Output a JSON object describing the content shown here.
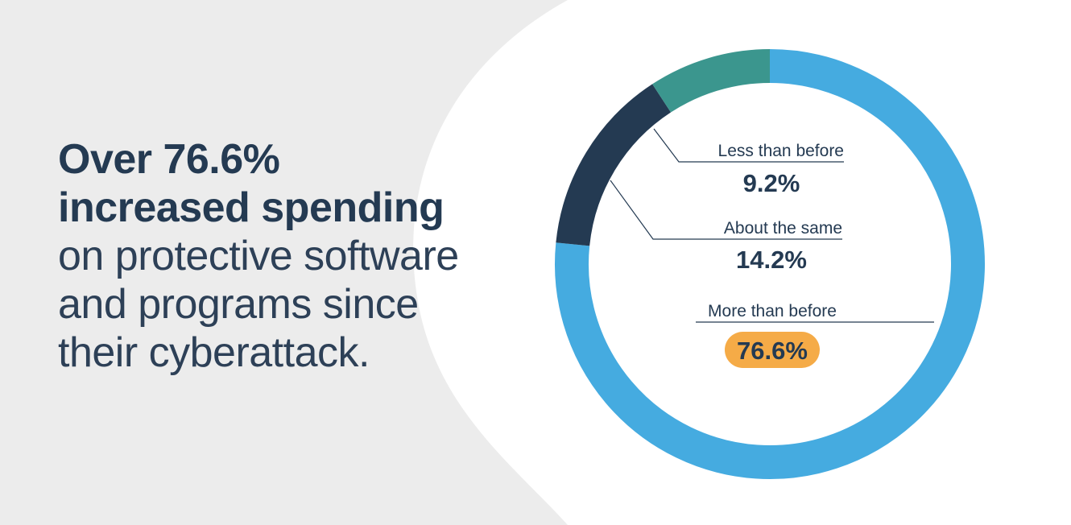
{
  "headline": {
    "line1": "Over 76.6%",
    "line2": "increased spending",
    "line3": "on protective software",
    "line4": "and programs since",
    "line5": "their cyberattack."
  },
  "colors": {
    "background_shape": "#ececec",
    "text": "#243a52",
    "highlight_badge": "#f5ab47"
  },
  "chart_data": {
    "type": "pie",
    "donut": true,
    "title": "",
    "slices": [
      {
        "label": "More than before",
        "value": 76.6,
        "display": "76.6%",
        "color": "#45abe0",
        "highlight": true
      },
      {
        "label": "About the same",
        "value": 14.2,
        "display": "14.2%",
        "color": "#243a52",
        "highlight": false
      },
      {
        "label": "Less than before",
        "value": 9.2,
        "display": "9.2%",
        "color": "#3b968e",
        "highlight": false
      }
    ],
    "legend": "callout labels"
  }
}
